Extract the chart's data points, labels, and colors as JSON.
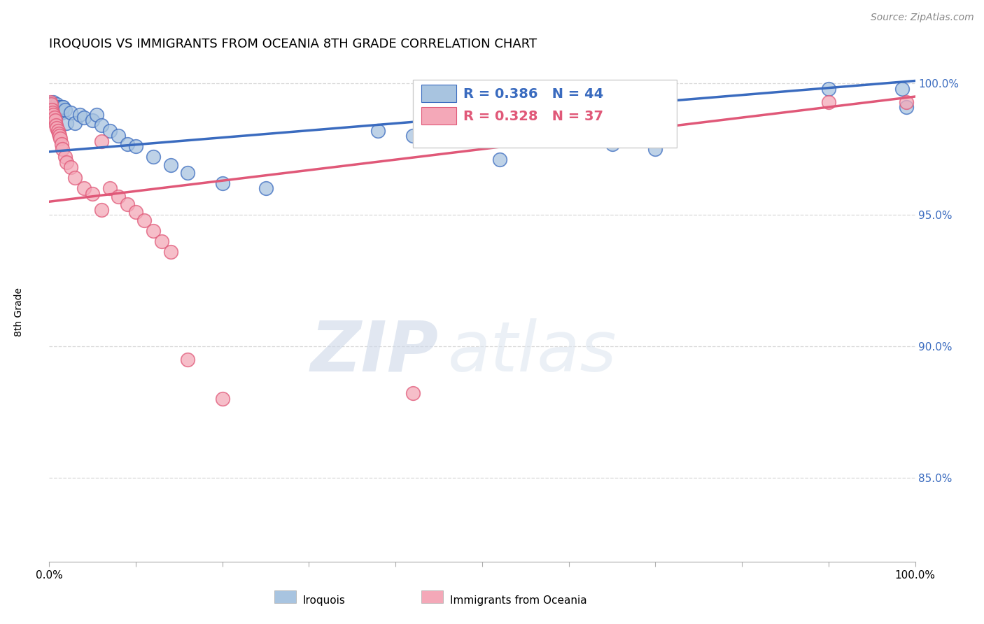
{
  "title": "IROQUOIS VS IMMIGRANTS FROM OCEANIA 8TH GRADE CORRELATION CHART",
  "source": "Source: ZipAtlas.com",
  "ylabel": "8th Grade",
  "xlim": [
    0.0,
    1.0
  ],
  "ylim": [
    0.818,
    1.008
  ],
  "yticks_right": [
    0.85,
    0.9,
    0.95,
    1.0
  ],
  "ytick_labels_right": [
    "85.0%",
    "90.0%",
    "95.0%",
    "100.0%"
  ],
  "blue_color": "#a8c4e0",
  "pink_color": "#f4a8b8",
  "blue_line_color": "#3a6bbf",
  "pink_line_color": "#e05878",
  "blue_R": 0.386,
  "blue_N": 44,
  "pink_R": 0.328,
  "pink_N": 37,
  "legend_label_blue": "Iroquois",
  "legend_label_pink": "Immigrants from Oceania",
  "blue_x": [
    0.001,
    0.002,
    0.003,
    0.004,
    0.005,
    0.005,
    0.006,
    0.007,
    0.008,
    0.009,
    0.01,
    0.011,
    0.012,
    0.013,
    0.014,
    0.015,
    0.016,
    0.018,
    0.02,
    0.025,
    0.03,
    0.035,
    0.04,
    0.05,
    0.055,
    0.06,
    0.07,
    0.08,
    0.09,
    0.1,
    0.12,
    0.14,
    0.16,
    0.2,
    0.25,
    0.38,
    0.42,
    0.5,
    0.52,
    0.65,
    0.7,
    0.9,
    0.985,
    0.99
  ],
  "blue_y": [
    0.991,
    0.992,
    0.989,
    0.99,
    0.991,
    0.993,
    0.989,
    0.991,
    0.99,
    0.992,
    0.991,
    0.99,
    0.991,
    0.99,
    0.989,
    0.991,
    0.991,
    0.99,
    0.985,
    0.989,
    0.985,
    0.988,
    0.987,
    0.986,
    0.988,
    0.984,
    0.982,
    0.98,
    0.977,
    0.976,
    0.972,
    0.969,
    0.966,
    0.962,
    0.96,
    0.982,
    0.98,
    0.98,
    0.971,
    0.977,
    0.975,
    0.998,
    0.998,
    0.991
  ],
  "pink_x": [
    0.001,
    0.002,
    0.003,
    0.004,
    0.005,
    0.006,
    0.007,
    0.008,
    0.009,
    0.01,
    0.011,
    0.012,
    0.013,
    0.014,
    0.015,
    0.018,
    0.02,
    0.025,
    0.03,
    0.04,
    0.05,
    0.06,
    0.07,
    0.08,
    0.09,
    0.1,
    0.11,
    0.12,
    0.13,
    0.14,
    0.16,
    0.2,
    0.06,
    0.42,
    0.65,
    0.9,
    0.99
  ],
  "pink_y": [
    0.993,
    0.992,
    0.99,
    0.989,
    0.988,
    0.987,
    0.986,
    0.984,
    0.983,
    0.982,
    0.981,
    0.98,
    0.979,
    0.977,
    0.975,
    0.972,
    0.97,
    0.968,
    0.964,
    0.96,
    0.958,
    0.978,
    0.96,
    0.957,
    0.954,
    0.951,
    0.948,
    0.944,
    0.94,
    0.936,
    0.895,
    0.88,
    0.952,
    0.882,
    0.992,
    0.993,
    0.993
  ],
  "watermark_zip": "ZIP",
  "watermark_atlas": "atlas",
  "background_color": "#ffffff",
  "grid_color": "#d8d8d8"
}
